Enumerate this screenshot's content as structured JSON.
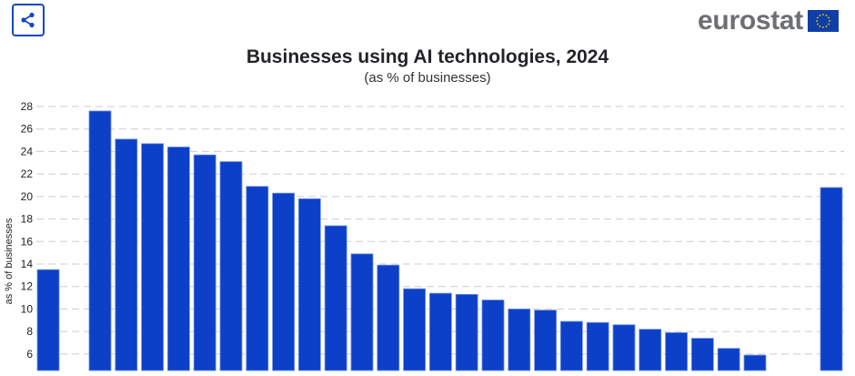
{
  "header": {
    "share_icon": "share-icon",
    "logo_text": "eurostat",
    "logo_flag": "eu-flag-icon"
  },
  "colors": {
    "bar": "#0c40c8",
    "accent": "#1546c6",
    "grid": "#cccccc",
    "logo_text": "#6d6f72",
    "flag_blue": "#0f3ea6",
    "flag_stars": "#ffcc00"
  },
  "chart_data": {
    "type": "bar",
    "title": "Businesses using AI technologies, 2024",
    "subtitle": "(as % of businesses)",
    "xlabel": "",
    "ylabel": "as % of businesses",
    "ylim": [
      4.5,
      28.5
    ],
    "yticks": [
      6,
      8,
      10,
      12,
      14,
      16,
      18,
      20,
      22,
      24,
      26,
      28
    ],
    "grid": true,
    "legend": "none",
    "categories": [
      "",
      "",
      "",
      "",
      "",
      "",
      "",
      "",
      "",
      "",
      "",
      "",
      "",
      "",
      "",
      "",
      "",
      "",
      "",
      "",
      "",
      "",
      "",
      "",
      "",
      "",
      "",
      ""
    ],
    "values": [
      13.5,
      27.6,
      25.1,
      24.7,
      24.4,
      23.7,
      23.1,
      20.9,
      20.3,
      19.8,
      17.4,
      14.9,
      13.9,
      11.8,
      11.4,
      11.3,
      10.8,
      10.0,
      9.9,
      8.9,
      8.8,
      8.6,
      8.2,
      7.9,
      7.4,
      6.5,
      5.9,
      20.8
    ]
  }
}
